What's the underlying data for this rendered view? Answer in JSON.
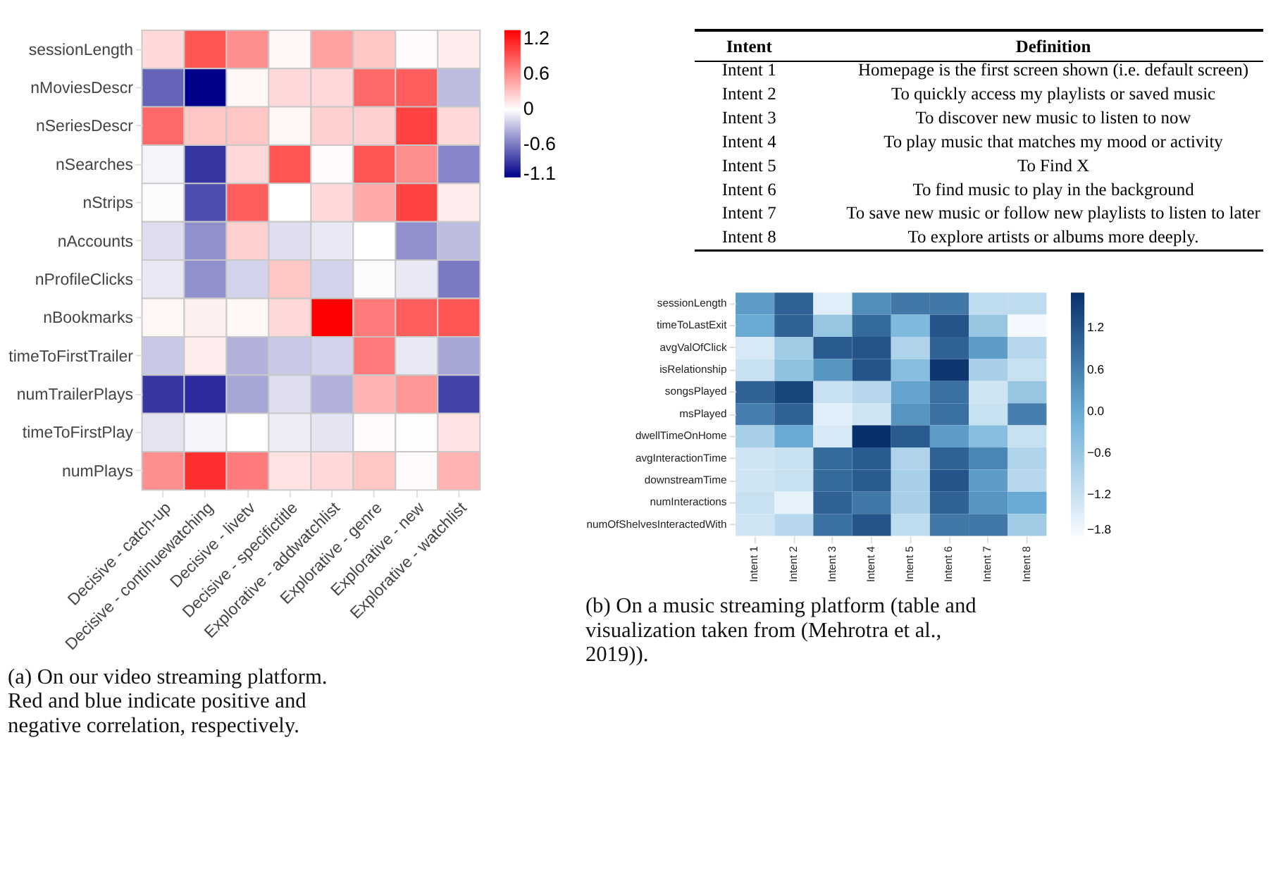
{
  "chart_data": [
    {
      "type": "heatmap",
      "categories": [
        "Decisive - catch-up",
        "Decisive - continuewatching",
        "Decisive - livetv",
        "Decisive - specifictitle",
        "Explorative - addwatchlist",
        "Explorative - genre",
        "Explorative - new",
        "Explorative - watchlist"
      ],
      "y_categories": [
        "sessionLength",
        "nMoviesDescr",
        "nSeriesDescr",
        "nSearches",
        "nStrips",
        "nAccounts",
        "nProfileClicks",
        "nBookmarks",
        "timeToFirstTrailer",
        "numTrailerPlays",
        "timeToFirstPlay",
        "numPlays"
      ],
      "cells": [
        [
          0.2,
          0.9,
          0.6,
          0.05,
          0.5,
          0.3,
          0.02,
          0.1
        ],
        [
          -0.7,
          -1.15,
          0.05,
          0.2,
          0.2,
          0.8,
          0.85,
          -0.3
        ],
        [
          0.8,
          0.3,
          0.3,
          0.05,
          0.25,
          0.25,
          1.0,
          0.2
        ],
        [
          -0.05,
          -0.9,
          0.2,
          0.9,
          0.02,
          0.9,
          0.6,
          -0.55
        ],
        [
          -0.02,
          -0.8,
          0.85,
          0.0,
          0.2,
          0.45,
          1.0,
          0.1
        ],
        [
          -0.15,
          -0.5,
          0.25,
          -0.15,
          -0.1,
          0.0,
          -0.5,
          -0.3
        ],
        [
          -0.1,
          -0.5,
          -0.2,
          0.3,
          -0.2,
          -0.02,
          -0.1,
          -0.6
        ],
        [
          0.05,
          0.08,
          0.05,
          0.2,
          1.35,
          0.7,
          0.85,
          0.9
        ],
        [
          -0.25,
          0.1,
          -0.35,
          -0.25,
          -0.2,
          0.7,
          -0.1,
          -0.4
        ],
        [
          -0.9,
          -0.95,
          -0.4,
          -0.15,
          -0.35,
          0.4,
          0.55,
          -0.85
        ],
        [
          -0.12,
          -0.05,
          0.0,
          -0.08,
          -0.12,
          0.02,
          -0.01,
          0.15
        ],
        [
          0.6,
          1.1,
          0.7,
          0.15,
          0.2,
          0.3,
          0.03,
          0.4
        ]
      ],
      "clim": [
        -1.15,
        1.35
      ],
      "cticks": [
        1.2,
        0.6,
        0,
        -0.6,
        -1.1
      ],
      "annotations": [
        "(a) On our video streaming platform. Red and blue indicate positive and negative correlation, respectively."
      ]
    },
    {
      "type": "other",
      "annotations": [
        "Intent",
        "Definition",
        "Intent 1",
        "Homepage is the first screen shown (i.e. default screen)",
        "Intent 2",
        "To quickly access my playlists or saved music",
        "Intent 3",
        "To discover new music to listen to now",
        "Intent 4",
        "To play music that matches my mood or activity",
        "Intent 5",
        "To Find X",
        "Intent 6",
        "To find music to play in the background",
        "Intent 7",
        "To save new music or follow new playlists to listen to later",
        "Intent 8",
        "To explore artists or albums more deeply."
      ]
    },
    {
      "type": "heatmap",
      "categories": [
        "Intent 1",
        "Intent 2",
        "Intent 3",
        "Intent 4",
        "Intent 5",
        "Intent 6",
        "Intent 7",
        "Intent 8"
      ],
      "y_categories": [
        "sessionLength",
        "timeToLastExit",
        "avgValOfClick",
        "isRelationship",
        "songsPlayed",
        "msPlayed",
        "dwellTimeOnHome",
        "avgInteractionTime",
        "downstreamTime",
        "numInteractions",
        "numOfShelvesInteractedWith"
      ],
      "cells": [
        [
          0.2,
          1.0,
          -1.5,
          0.4,
          0.7,
          0.7,
          -1.1,
          -1.1
        ],
        [
          0.0,
          1.0,
          -0.6,
          0.9,
          -0.3,
          1.2,
          -0.6,
          -1.75
        ],
        [
          -1.4,
          -0.7,
          1.1,
          1.2,
          -0.9,
          1.0,
          0.2,
          -1.0
        ],
        [
          -1.2,
          -0.5,
          0.3,
          1.2,
          -0.4,
          1.6,
          -0.8,
          -1.2
        ],
        [
          1.0,
          1.4,
          -1.2,
          -1.0,
          0.1,
          0.8,
          -1.3,
          -0.6
        ],
        [
          0.6,
          1.0,
          -1.5,
          -1.3,
          0.3,
          0.8,
          -1.2,
          0.6
        ],
        [
          -0.8,
          0.0,
          -1.4,
          1.7,
          1.1,
          0.2,
          -0.4,
          -1.2
        ],
        [
          -1.3,
          -1.2,
          0.9,
          1.1,
          -0.9,
          1.0,
          0.5,
          -0.9
        ],
        [
          -1.3,
          -1.2,
          0.9,
          1.1,
          -0.8,
          1.2,
          0.2,
          -1.0
        ],
        [
          -1.2,
          -1.6,
          1.0,
          0.7,
          -0.8,
          1.0,
          0.3,
          0.0
        ],
        [
          -1.3,
          -1.0,
          0.8,
          1.2,
          -1.1,
          0.7,
          0.7,
          -0.7
        ]
      ],
      "clim": [
        -1.8,
        1.7
      ],
      "cticks": [
        1.2,
        0.6,
        {
          "value": 0.0,
          "label": "0.0"
        },
        {
          "value": -0.6,
          "label": "−0.6"
        },
        {
          "value": -1.2,
          "label": "−1.2"
        },
        {
          "value": -1.8,
          "label": "−1.8"
        }
      ],
      "annotations": [
        "(b) On a music streaming platform (table and visualization taken from (Mehrotra et al., 2019))."
      ]
    }
  ]
}
